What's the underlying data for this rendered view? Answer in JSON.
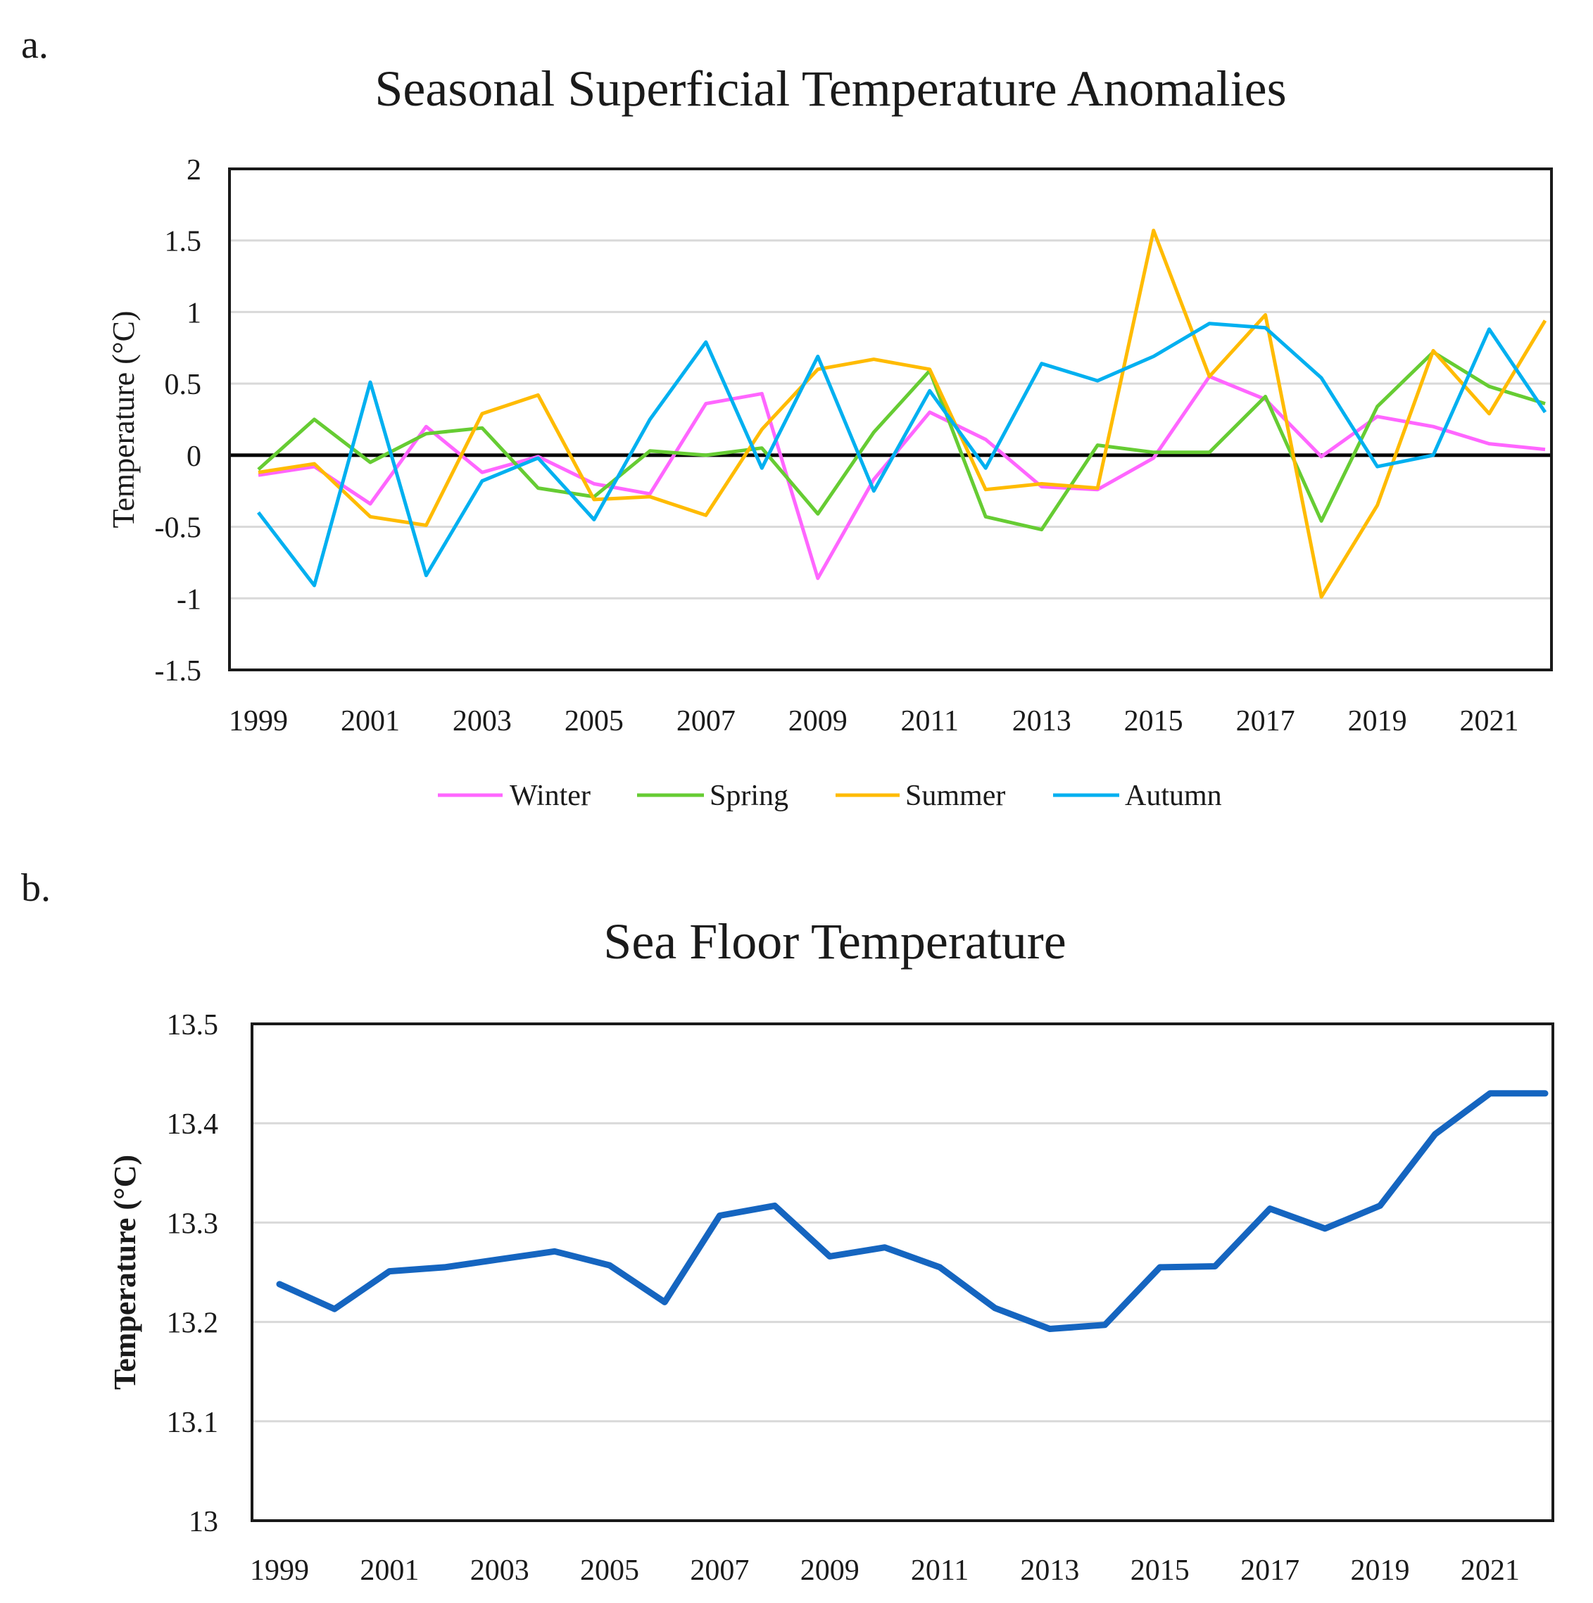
{
  "chart_data": [
    {
      "panel_label": "a.",
      "type": "line",
      "title": "Seasonal Superficial Temperature Anomalies",
      "xlabel": "",
      "ylabel": "Temperature (°C)",
      "ylim": [
        -1.5,
        2
      ],
      "yticks": [
        2,
        1.5,
        1,
        0.5,
        0,
        -0.5,
        -1,
        -1.5
      ],
      "ytick_labels": [
        "2",
        "1.5",
        "1",
        "0.5",
        "0",
        "-0.5",
        "-1",
        "-1.5"
      ],
      "x": [
        1999,
        2000,
        2001,
        2002,
        2003,
        2004,
        2005,
        2006,
        2007,
        2008,
        2009,
        2010,
        2011,
        2012,
        2013,
        2014,
        2015,
        2016,
        2017,
        2018,
        2019,
        2020,
        2021,
        2022
      ],
      "xtick_labels": [
        "1999",
        "2001",
        "2003",
        "2005",
        "2007",
        "2009",
        "2011",
        "2013",
        "2015",
        "2017",
        "2019",
        "2021"
      ],
      "xtick_values": [
        1999,
        2001,
        2003,
        2005,
        2007,
        2009,
        2011,
        2013,
        2015,
        2017,
        2019,
        2021
      ],
      "grid": true,
      "zero_line": true,
      "legend_position": "bottom",
      "series": [
        {
          "name": "Winter",
          "color": "#ff66ff",
          "values": [
            -0.14,
            -0.08,
            -0.34,
            0.2,
            -0.12,
            -0.01,
            -0.2,
            -0.27,
            0.36,
            0.43,
            -0.86,
            -0.17,
            0.3,
            0.11,
            -0.22,
            -0.24,
            -0.02,
            0.55,
            0.39,
            -0.01,
            0.27,
            0.2,
            0.08,
            0.04
          ]
        },
        {
          "name": "Spring",
          "color": "#66cc33",
          "values": [
            -0.1,
            0.25,
            -0.05,
            0.15,
            0.19,
            -0.23,
            -0.29,
            0.03,
            0.0,
            0.05,
            -0.41,
            0.16,
            0.59,
            -0.43,
            -0.52,
            0.07,
            0.02,
            0.02,
            0.41,
            -0.46,
            0.34,
            0.72,
            0.48,
            0.36
          ]
        },
        {
          "name": "Summer",
          "color": "#ffbb00",
          "values": [
            -0.12,
            -0.06,
            -0.43,
            -0.49,
            0.29,
            0.42,
            -0.31,
            -0.29,
            -0.42,
            0.18,
            0.6,
            0.67,
            0.6,
            -0.24,
            -0.2,
            -0.23,
            1.57,
            0.55,
            0.98,
            -0.99,
            -0.35,
            0.73,
            0.29,
            0.94
          ]
        },
        {
          "name": "Autumn",
          "color": "#00b0f0",
          "values": [
            -0.4,
            -0.91,
            0.51,
            -0.84,
            -0.18,
            -0.02,
            -0.45,
            0.25,
            0.79,
            -0.09,
            0.69,
            -0.25,
            0.45,
            -0.09,
            0.64,
            0.52,
            0.69,
            0.92,
            0.89,
            0.54,
            -0.08,
            0.0,
            0.88,
            0.3
          ]
        }
      ]
    },
    {
      "panel_label": "b.",
      "type": "line",
      "title": "Sea Floor Temperature",
      "xlabel": "",
      "ylabel": "Temperature (°C)",
      "ylim": [
        13,
        13.5
      ],
      "yticks": [
        13.5,
        13.4,
        13.3,
        13.2,
        13.1,
        13
      ],
      "ytick_labels": [
        "13.5",
        "13.4",
        "13.3",
        "13.2",
        "13.1",
        "13"
      ],
      "x": [
        1999,
        2000,
        2001,
        2002,
        2003,
        2004,
        2005,
        2006,
        2007,
        2008,
        2009,
        2010,
        2011,
        2012,
        2013,
        2014,
        2015,
        2016,
        2017,
        2018,
        2019,
        2020,
        2021,
        2022
      ],
      "xtick_labels": [
        "1999",
        "2001",
        "2003",
        "2005",
        "2007",
        "2009",
        "2011",
        "2013",
        "2015",
        "2017",
        "2019",
        "2021"
      ],
      "xtick_values": [
        1999,
        2001,
        2003,
        2005,
        2007,
        2009,
        2011,
        2013,
        2015,
        2017,
        2019,
        2021
      ],
      "grid": true,
      "legend_position": "none",
      "series": [
        {
          "name": "Sea Floor Temperature",
          "color": "#1565c0",
          "values": [
            13.238,
            13.213,
            13.251,
            13.255,
            13.263,
            13.271,
            13.257,
            13.22,
            13.307,
            13.317,
            13.266,
            13.275,
            13.255,
            13.214,
            13.193,
            13.197,
            13.255,
            13.256,
            13.314,
            13.294,
            13.317,
            13.389,
            13.43,
            13.43
          ]
        }
      ]
    }
  ]
}
